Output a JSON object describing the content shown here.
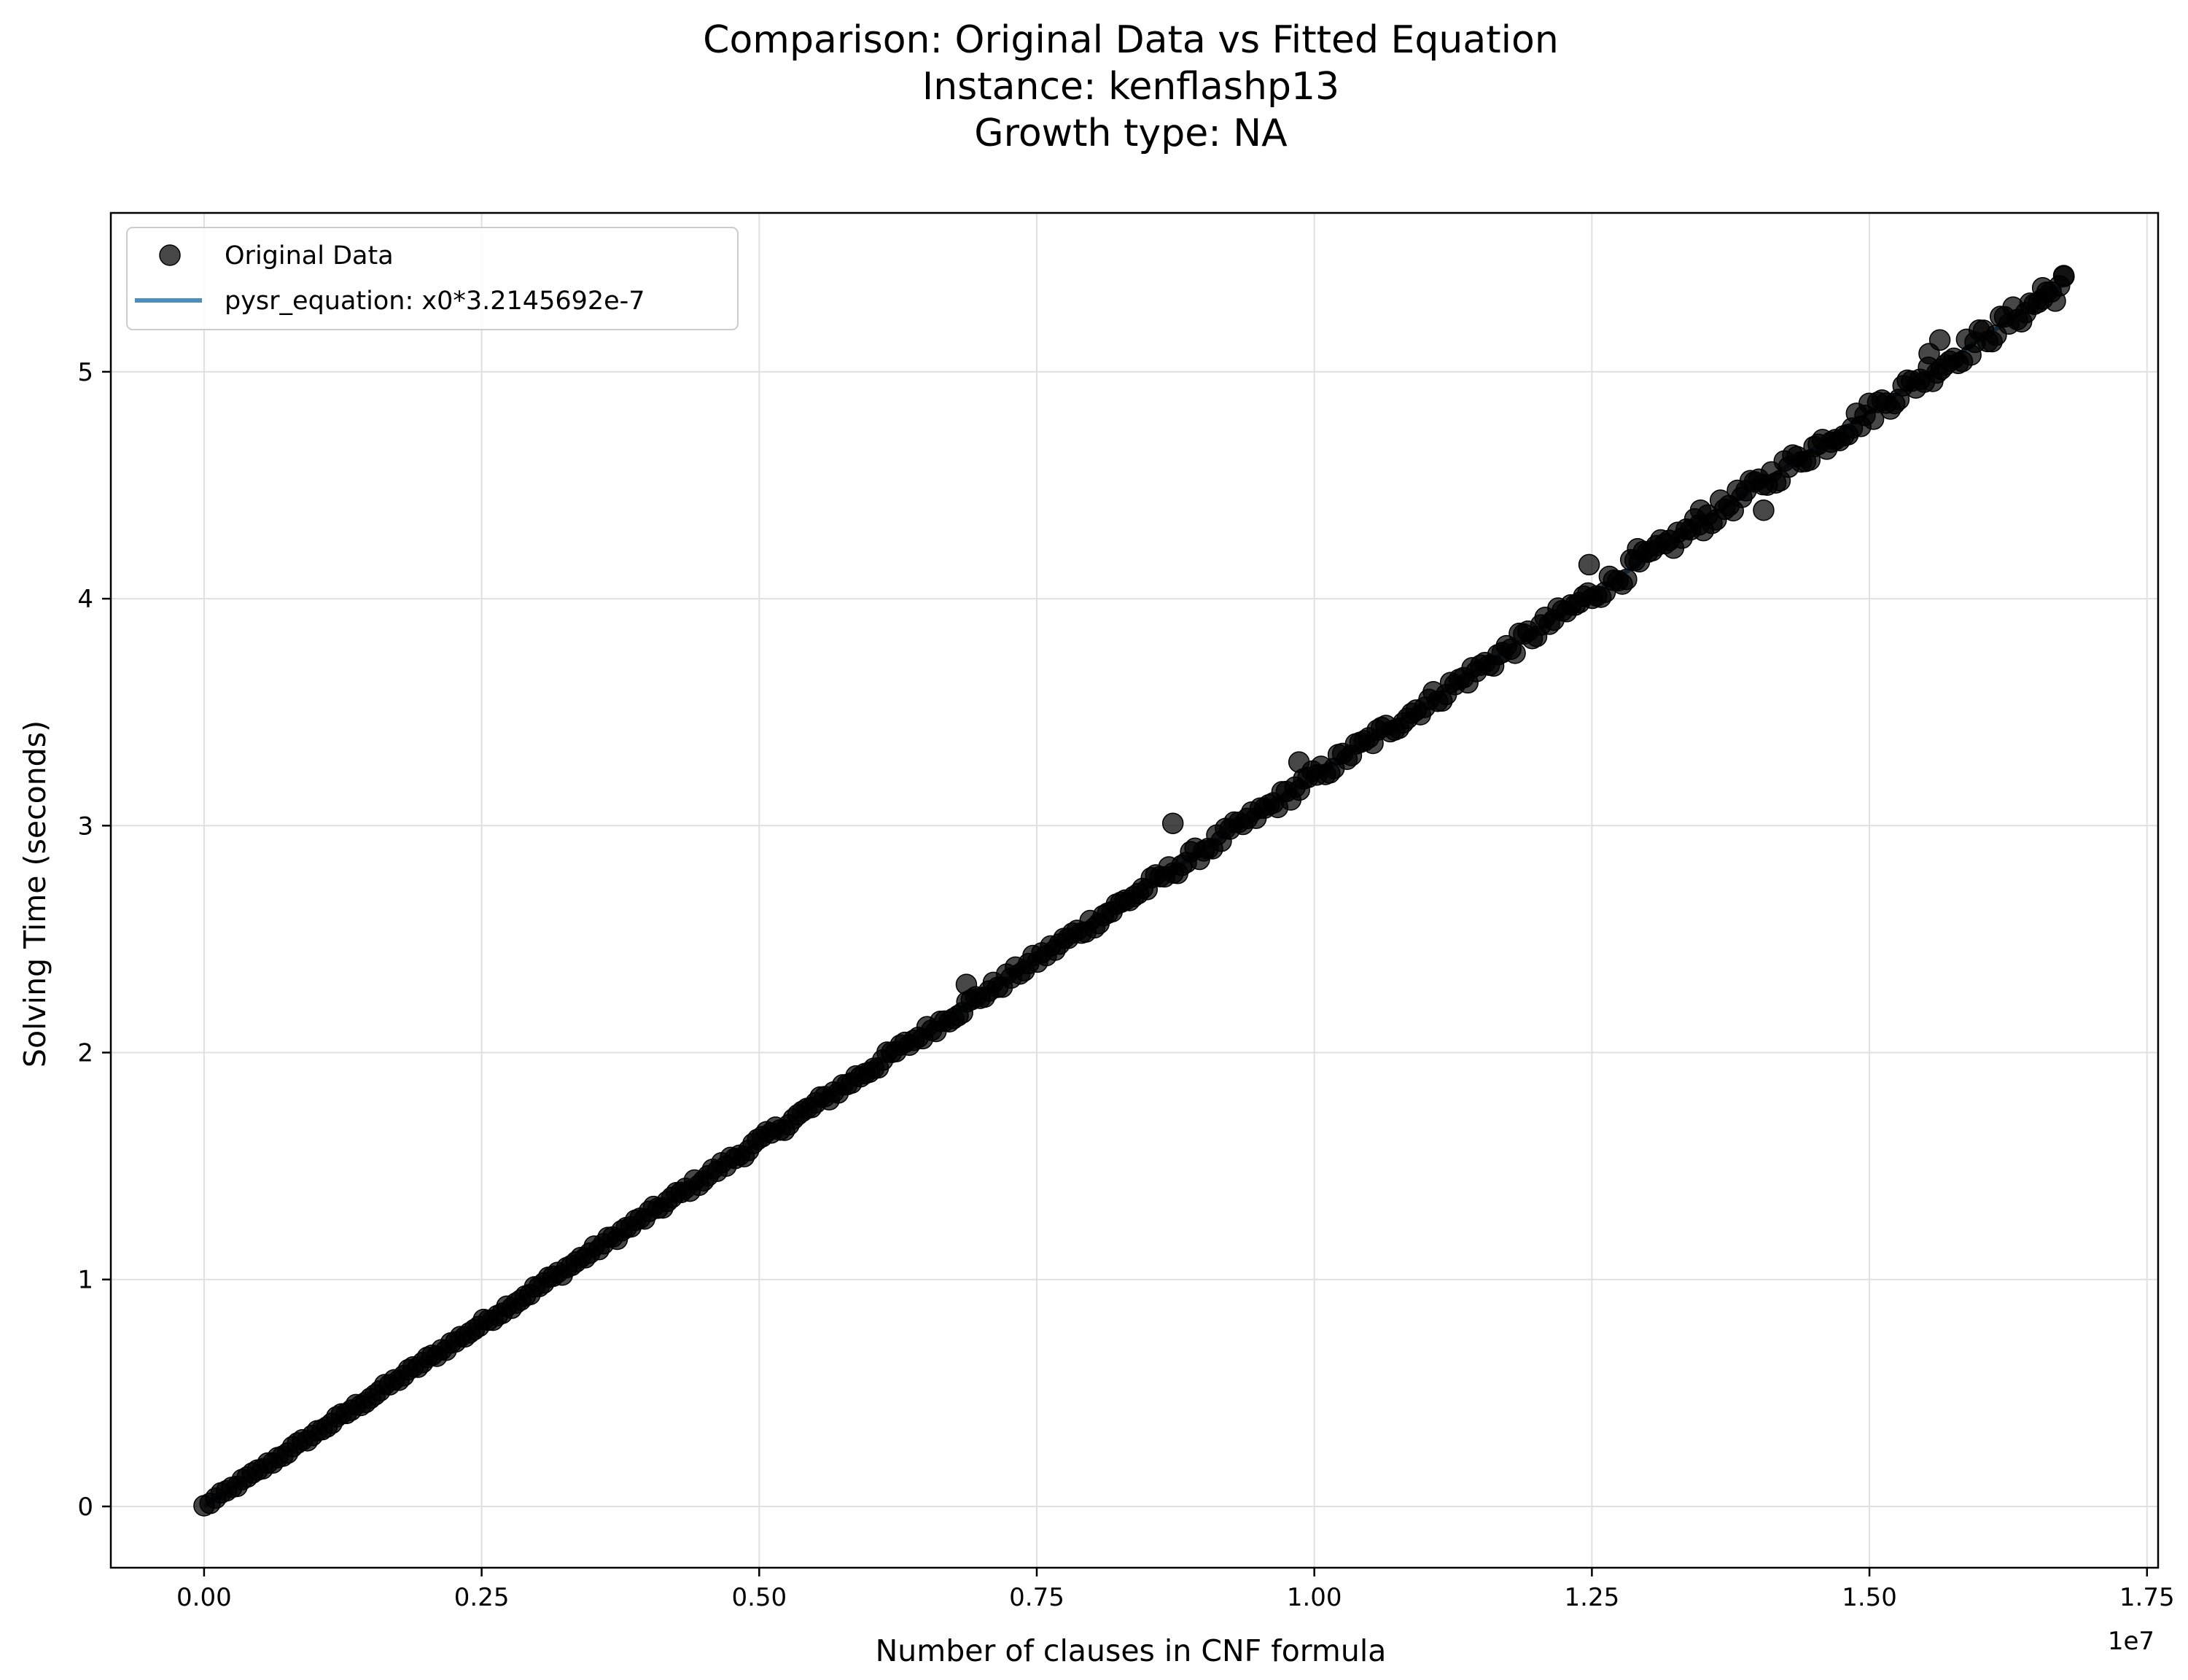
{
  "chart_data": {
    "type": "scatter",
    "title_lines": [
      "Comparison: Original Data vs Fitted Equation",
      "Instance: kenflashp13",
      "Growth type: NA"
    ],
    "xlabel": "Number of clauses in CNF formula",
    "ylabel": "Solving Time (seconds)",
    "x_offset_label": "1e7",
    "x_scale": 10000000,
    "xlim": [
      -0.084,
      1.76
    ],
    "ylim": [
      -0.27,
      5.7
    ],
    "x_ticks": [
      0.0,
      0.25,
      0.5,
      0.75,
      1.0,
      1.25,
      1.5,
      1.75
    ],
    "x_tick_labels": [
      "0.00",
      "0.25",
      "0.50",
      "0.75",
      "1.00",
      "1.25",
      "1.50",
      "1.75"
    ],
    "y_ticks": [
      0,
      1,
      2,
      3,
      4,
      5
    ],
    "y_tick_labels": [
      "0",
      "1",
      "2",
      "3",
      "4",
      "5"
    ],
    "grid": true,
    "legend_position": "top-left",
    "colors": {
      "points": "#000000",
      "fit_line": "#4a8ec0",
      "grid": "#e0e0e0"
    },
    "series": [
      {
        "name": "Original Data",
        "kind": "scatter",
        "x_range": [
          0.0,
          1.675
        ],
        "point_count": 420,
        "slope": 3.2145692,
        "outliers": [
          {
            "x": 0.6866,
            "y": 2.3
          },
          {
            "x": 0.8726,
            "y": 3.01
          },
          {
            "x": 0.9862,
            "y": 3.28
          },
          {
            "x": 1.2475,
            "y": 4.15
          },
          {
            "x": 1.4047,
            "y": 4.39
          },
          {
            "x": 1.5634,
            "y": 5.14
          },
          {
            "x": 1.5538,
            "y": 5.08
          },
          {
            "x": 1.6752,
            "y": 5.42
          },
          {
            "x": 1.656,
            "y": 5.37
          },
          {
            "x": 1.3479,
            "y": 4.39
          },
          {
            "x": 1.2912,
            "y": 4.22
          }
        ]
      },
      {
        "name": "pysr_equation: x0*3.2145692e-7",
        "kind": "line",
        "slope": 3.2145692,
        "x_range": [
          0.0,
          1.675
        ]
      }
    ]
  }
}
